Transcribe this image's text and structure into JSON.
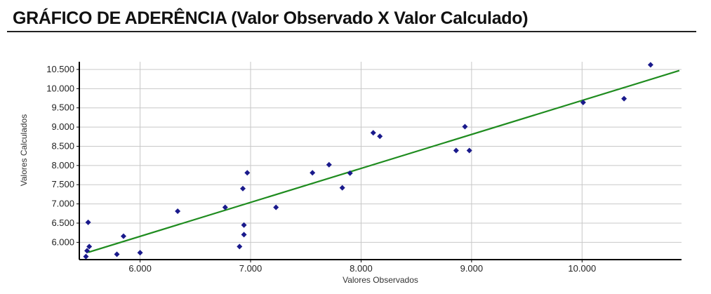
{
  "header": {
    "title": "GRÁFICO DE ADERÊNCIA (Valor Observado X Valor Calculado)"
  },
  "chart_data": {
    "type": "scatter",
    "title": "GRÁFICO DE ADERÊNCIA (Valor Observado X Valor Calculado)",
    "xlabel": "Valores Observados",
    "ylabel": "Valores Calculados",
    "xlim": [
      5450,
      10900
    ],
    "ylim": [
      5550,
      10700
    ],
    "xticks": [
      6000,
      7000,
      8000,
      9000,
      10000
    ],
    "xtick_labels": [
      "6.000",
      "7.000",
      "8.000",
      "9.000",
      "10.000"
    ],
    "yticks": [
      6000,
      6500,
      7000,
      7500,
      8000,
      8500,
      9000,
      9500,
      10000,
      10500
    ],
    "ytick_labels": [
      "6.000",
      "6.500",
      "7.000",
      "7.500",
      "8.000",
      "8.500",
      "9.000",
      "9.500",
      "10.000",
      "10.500"
    ],
    "grid": true,
    "point_color": "#1a1a8c",
    "trendline_color": "#1f8c1f",
    "points": [
      {
        "x": 5530,
        "y": 6520
      },
      {
        "x": 5540,
        "y": 5890
      },
      {
        "x": 5520,
        "y": 5780
      },
      {
        "x": 5510,
        "y": 5630
      },
      {
        "x": 5790,
        "y": 5690
      },
      {
        "x": 5850,
        "y": 6160
      },
      {
        "x": 6000,
        "y": 5730
      },
      {
        "x": 6340,
        "y": 6810
      },
      {
        "x": 6770,
        "y": 6910
      },
      {
        "x": 6900,
        "y": 5890
      },
      {
        "x": 6930,
        "y": 7400
      },
      {
        "x": 6940,
        "y": 6450
      },
      {
        "x": 6940,
        "y": 6200
      },
      {
        "x": 6970,
        "y": 7810
      },
      {
        "x": 7230,
        "y": 6910
      },
      {
        "x": 7560,
        "y": 7810
      },
      {
        "x": 7710,
        "y": 8020
      },
      {
        "x": 7830,
        "y": 7420
      },
      {
        "x": 7900,
        "y": 7800
      },
      {
        "x": 8110,
        "y": 8850
      },
      {
        "x": 8170,
        "y": 8760
      },
      {
        "x": 8860,
        "y": 8390
      },
      {
        "x": 8940,
        "y": 9010
      },
      {
        "x": 8980,
        "y": 8390
      },
      {
        "x": 10010,
        "y": 9640
      },
      {
        "x": 10380,
        "y": 9740
      },
      {
        "x": 10620,
        "y": 10620
      }
    ],
    "trendline": {
      "x": [
        5530,
        10880
      ],
      "y": [
        5740,
        10470
      ]
    }
  }
}
